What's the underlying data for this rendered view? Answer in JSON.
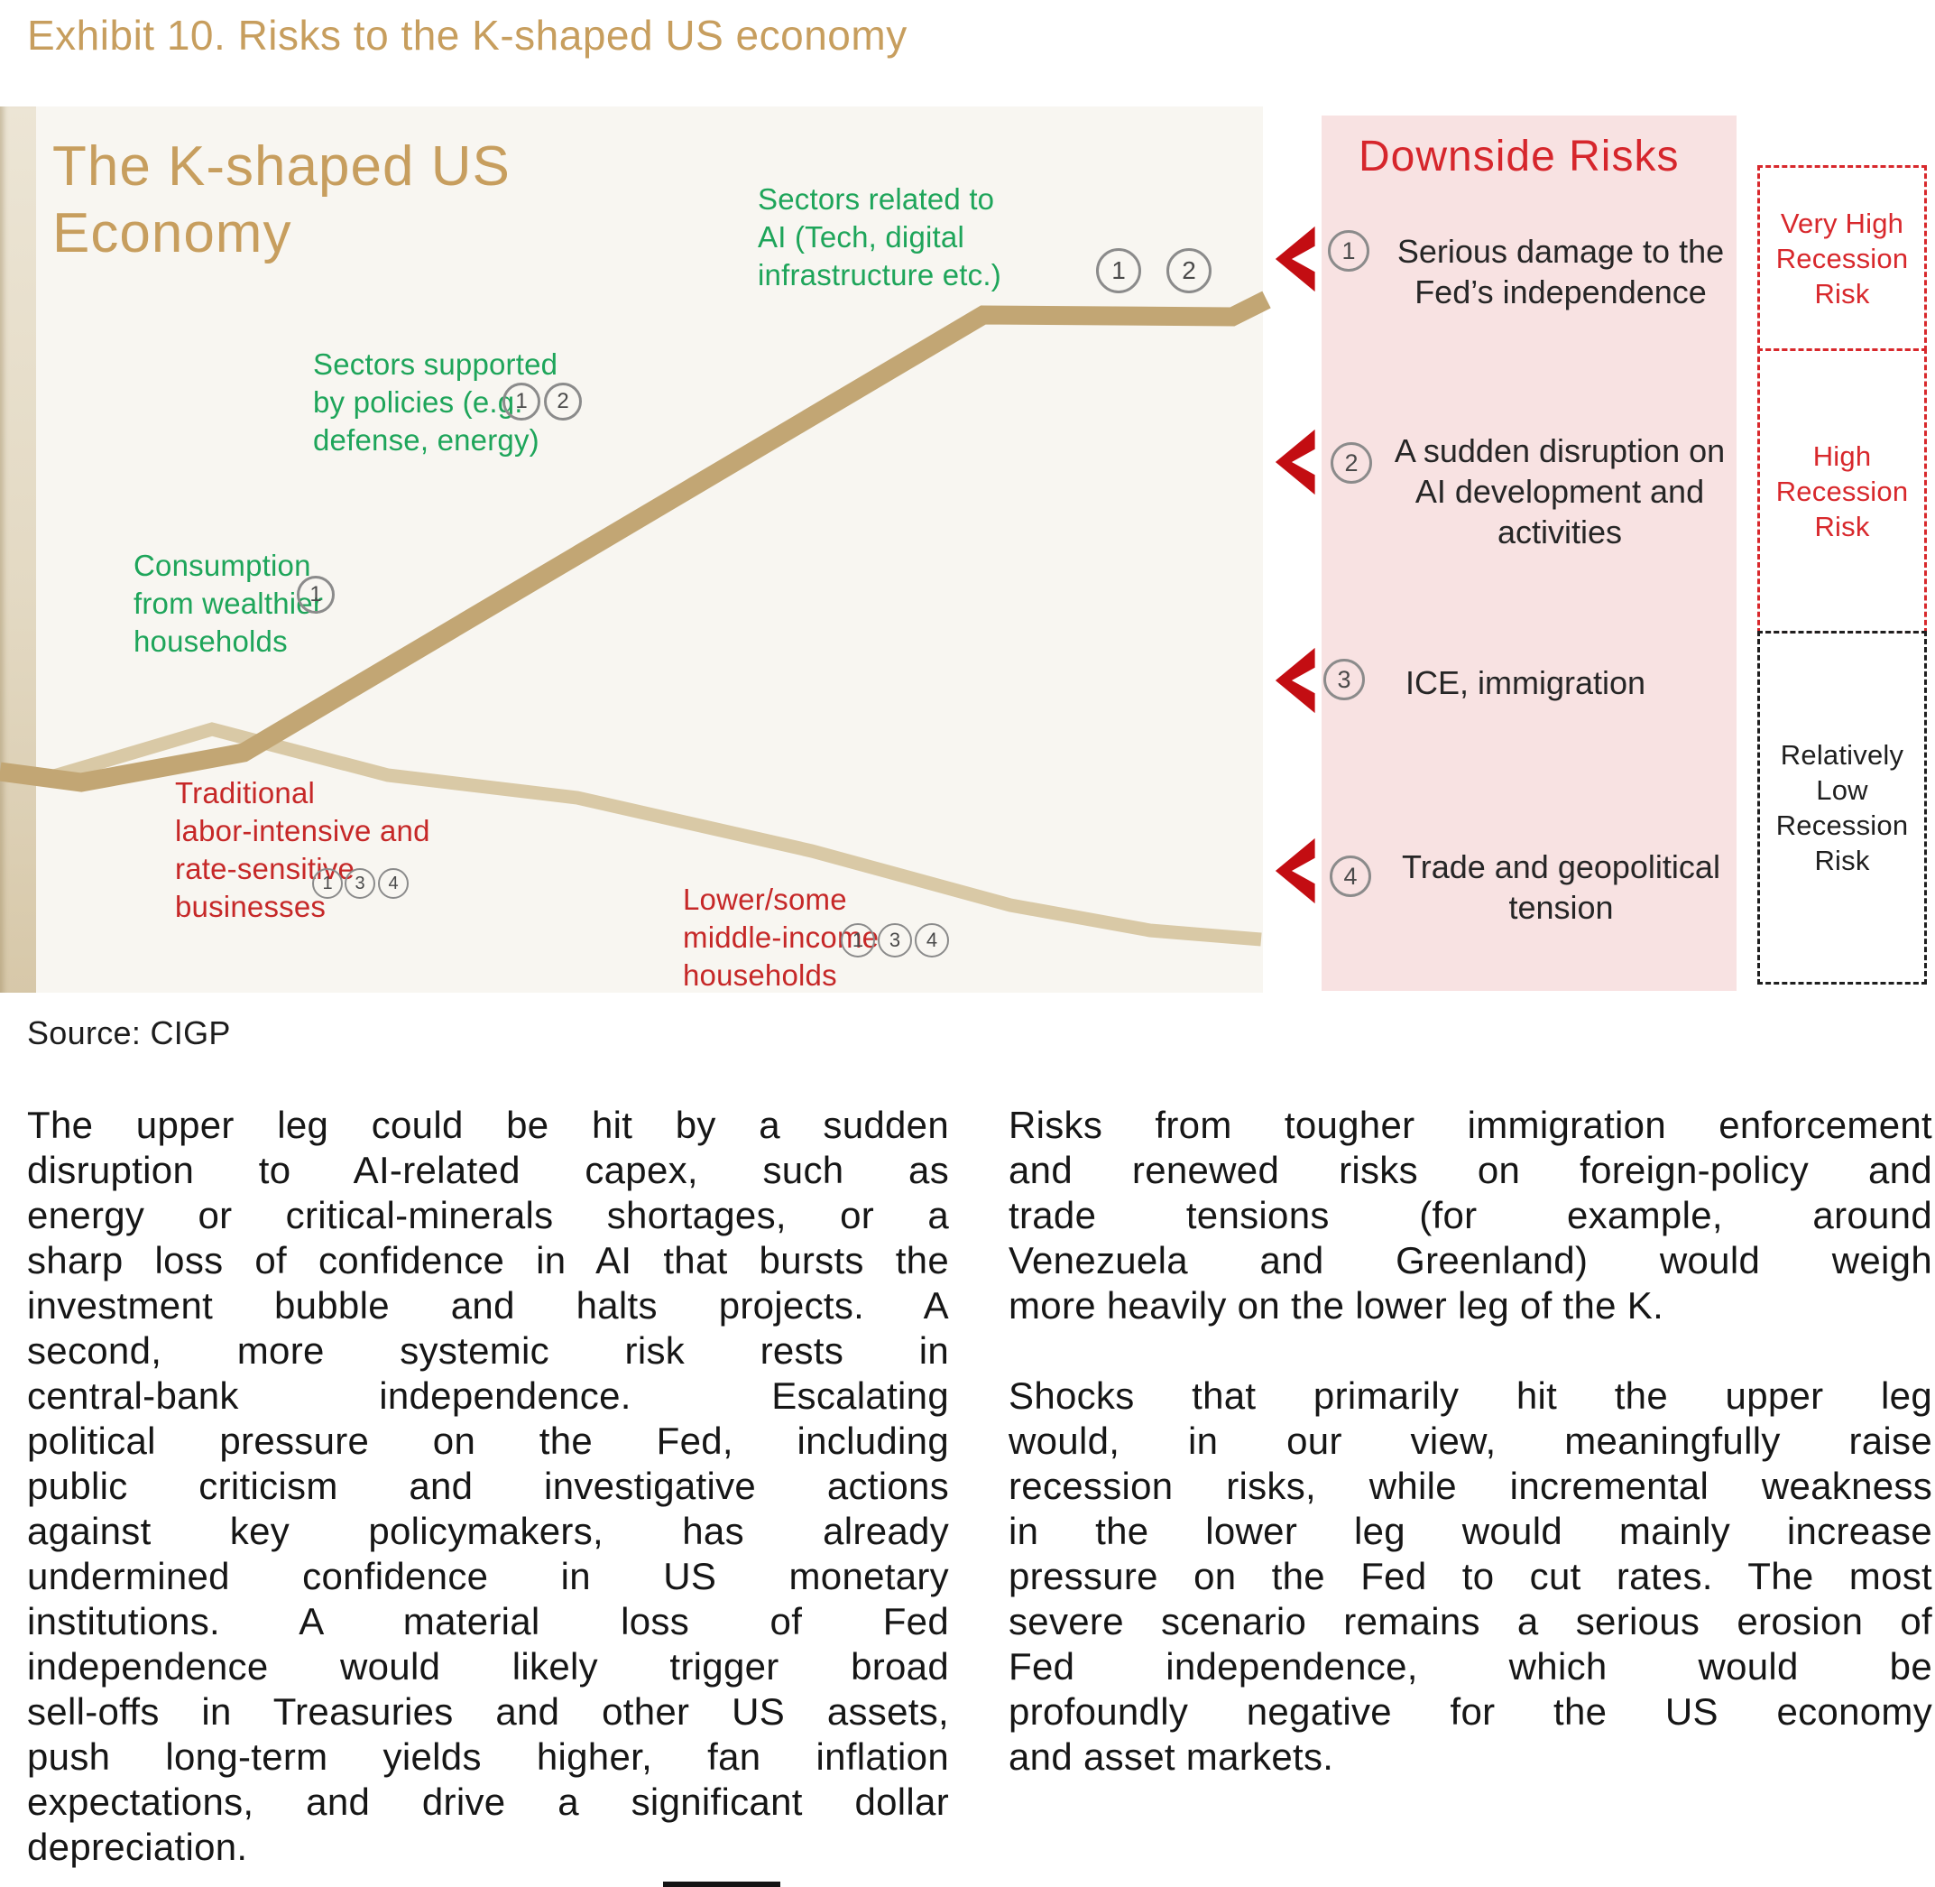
{
  "colors": {
    "gold": "#c79e5e",
    "green": "#1ea55a",
    "red-label": "#c62828",
    "panel-bg": "#f8e2e2",
    "panel-red": "#d6262c",
    "chevron": "#c30d12",
    "box-red": "#d8282c",
    "box-black": "#1f1f1f",
    "line-upper": "#c2a674",
    "line-lower": "#d9c9a6"
  },
  "exhibit": {
    "title": "Exhibit 10. Risks to the K-shaped US economy",
    "source": "Source: CIGP"
  },
  "diagram": {
    "title_lines": [
      "The K-shaped US",
      "Economy"
    ],
    "labels": {
      "ai": {
        "lines": [
          "Sectors related to",
          "AI (Tech, digital",
          "infrastructure etc.)"
        ],
        "badges": [
          "1",
          "2"
        ]
      },
      "policies": {
        "lines": [
          "Sectors supported",
          "by policies (e.g.",
          "defense, energy)"
        ],
        "badges": [
          "1",
          "2"
        ]
      },
      "wealthy": {
        "lines": [
          "Consumption",
          "from wealthier",
          "households"
        ],
        "badges": [
          "1"
        ]
      },
      "traditional": {
        "lines": [
          "Traditional",
          "labor-intensive and",
          "rate-sensitive",
          "businesses"
        ],
        "badges": [
          "1",
          "3",
          "4"
        ]
      },
      "lower": {
        "lines": [
          "Lower/some",
          "middle-income",
          "households"
        ],
        "badges": [
          "1",
          "3",
          "4"
        ]
      }
    }
  },
  "risk_panel": {
    "title": "Downside Risks",
    "items": [
      {
        "num": "1",
        "lines": [
          "Serious damage to the",
          "Fed’s independence"
        ]
      },
      {
        "num": "2",
        "lines": [
          "A sudden disruption on",
          "AI development and",
          "activities"
        ]
      },
      {
        "num": "3",
        "lines": [
          "ICE, immigration"
        ]
      },
      {
        "num": "4",
        "lines": [
          "Trade and geopolitical",
          "tension"
        ]
      }
    ]
  },
  "risk_boxes": [
    {
      "tone": "red",
      "lines": [
        "Very High",
        "Recession",
        "Risk"
      ]
    },
    {
      "tone": "red",
      "lines": [
        "High",
        "Recession",
        "Risk"
      ]
    },
    {
      "tone": "black",
      "lines": [
        "Relatively",
        "Low",
        "Recession",
        "Risk"
      ]
    }
  ],
  "body": {
    "left": [
      {
        "lines": [
          "The upper leg could be hit by a sudden",
          "disruption to AI-related capex, such as",
          "energy or critical-minerals shortages, or a",
          "sharp loss of confidence in AI that bursts the",
          "investment bubble and halts projects. A",
          "second, more systemic risk rests in",
          "central-bank independence. Escalating",
          "political pressure on the Fed, including",
          "public criticism and investigative actions",
          "against key policymakers, has already",
          "undermined confidence in US monetary",
          "institutions. A material loss of Fed",
          "independence would likely trigger broad",
          "sell-offs in Treasuries and other US assets,",
          "push long-term yields higher, fan inflation",
          "expectations, and drive a significant dollar",
          "depreciation."
        ]
      }
    ],
    "right": [
      {
        "lines": [
          "Risks from tougher immigration enforcement",
          "and renewed risks on foreign-policy and",
          "trade tensions (for example, around",
          "Venezuela and Greenland) would weigh",
          "more heavily on the lower leg of the K."
        ]
      },
      {
        "lines": [
          "Shocks that primarily hit the upper leg",
          "would, in our view, meaningfully raise",
          "recession risks, while incremental weakness",
          "in the lower leg would mainly increase",
          "pressure on the Fed to cut rates. The most",
          "severe scenario remains a serious erosion of",
          "Fed independence, which would be",
          "profoundly negative for the US economy",
          "and asset markets."
        ]
      }
    ]
  }
}
